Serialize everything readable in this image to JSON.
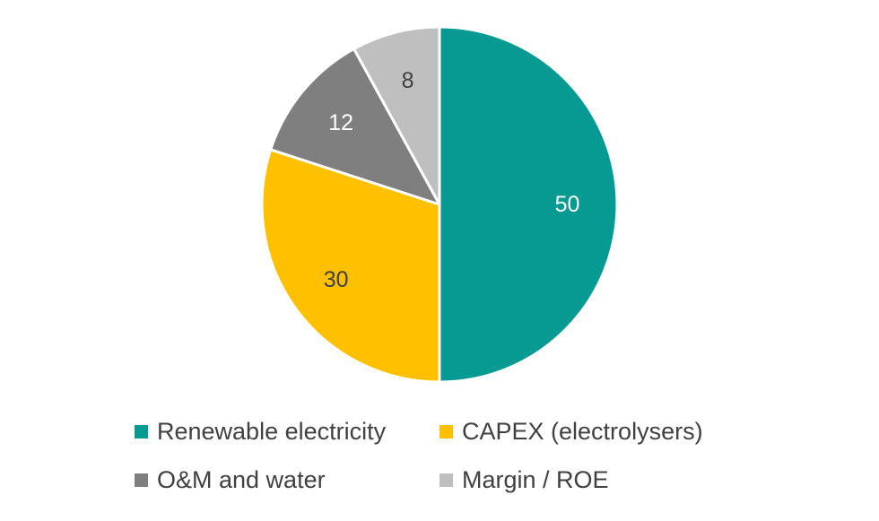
{
  "chart_data": {
    "type": "pie",
    "title": "",
    "categories": [
      "Renewable electricity",
      "CAPEX (electrolysers)",
      "O&M and water",
      "Margin / ROE"
    ],
    "values": [
      50,
      30,
      12,
      8
    ],
    "colors": [
      "#069A92",
      "#FFC000",
      "#7F7F7F",
      "#BFBFBF"
    ],
    "data_labels": [
      "50",
      "30",
      "12",
      "8"
    ],
    "label_colors": [
      "#FFFFFF",
      "#404040",
      "#FFFFFF",
      "#404040"
    ],
    "start_angle_deg": 0,
    "direction": "clockwise",
    "legend_position": "bottom"
  }
}
